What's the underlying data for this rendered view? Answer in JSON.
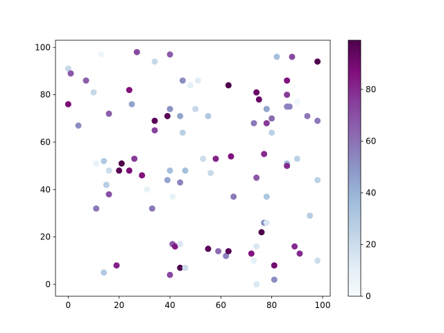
{
  "chart_data": {
    "type": "scatter",
    "title": "",
    "xlabel": "",
    "ylabel": "",
    "xlim": [
      -5,
      103
    ],
    "ylim": [
      -5,
      103
    ],
    "x_ticks": [
      0,
      20,
      40,
      60,
      80,
      100
    ],
    "y_ticks": [
      0,
      20,
      40,
      60,
      80,
      100
    ],
    "grid": false,
    "colormap": "BuPu",
    "colorbar": {
      "min": 0,
      "max": 99,
      "ticks": [
        0,
        20,
        40,
        60,
        80
      ]
    },
    "points": [
      {
        "x": 0,
        "y": 91,
        "c": 22
      },
      {
        "x": 1,
        "y": 89,
        "c": 68
      },
      {
        "x": 0,
        "y": 76,
        "c": 88
      },
      {
        "x": 4,
        "y": 67,
        "c": 52
      },
      {
        "x": 7,
        "y": 86,
        "c": 66
      },
      {
        "x": 10,
        "y": 81,
        "c": 22
      },
      {
        "x": 13,
        "y": 97,
        "c": 5
      },
      {
        "x": 11,
        "y": 51,
        "c": 8
      },
      {
        "x": 14,
        "y": 52,
        "c": 30
      },
      {
        "x": 15,
        "y": 42,
        "c": 28
      },
      {
        "x": 16,
        "y": 48,
        "c": 20
      },
      {
        "x": 16,
        "y": 72,
        "c": 66
      },
      {
        "x": 11,
        "y": 32,
        "c": 58
      },
      {
        "x": 16,
        "y": 38,
        "c": 70
      },
      {
        "x": 14,
        "y": 5,
        "c": 30
      },
      {
        "x": 19,
        "y": 8,
        "c": 82
      },
      {
        "x": 20,
        "y": 48,
        "c": 96
      },
      {
        "x": 21,
        "y": 51,
        "c": 99
      },
      {
        "x": 24,
        "y": 48,
        "c": 88
      },
      {
        "x": 24,
        "y": 82,
        "c": 86
      },
      {
        "x": 25,
        "y": 76,
        "c": 45
      },
      {
        "x": 26,
        "y": 53,
        "c": 76
      },
      {
        "x": 27,
        "y": 98,
        "c": 72
      },
      {
        "x": 29,
        "y": 46,
        "c": 86
      },
      {
        "x": 31,
        "y": 40,
        "c": 8
      },
      {
        "x": 33,
        "y": 32,
        "c": 58
      },
      {
        "x": 34,
        "y": 94,
        "c": 22
      },
      {
        "x": 34,
        "y": 69,
        "c": 96
      },
      {
        "x": 34,
        "y": 65,
        "c": 74
      },
      {
        "x": 39,
        "y": 71,
        "c": 96
      },
      {
        "x": 39,
        "y": 44,
        "c": 45
      },
      {
        "x": 40,
        "y": 48,
        "c": 35
      },
      {
        "x": 40,
        "y": 74,
        "c": 50
      },
      {
        "x": 40,
        "y": 97,
        "c": 66
      },
      {
        "x": 40,
        "y": 4,
        "c": 72
      },
      {
        "x": 41,
        "y": 37,
        "c": 8
      },
      {
        "x": 41,
        "y": 17,
        "c": 66
      },
      {
        "x": 42,
        "y": 16,
        "c": 84
      },
      {
        "x": 44,
        "y": 17,
        "c": 15
      },
      {
        "x": 44,
        "y": 71,
        "c": 45
      },
      {
        "x": 44,
        "y": 43,
        "c": 55
      },
      {
        "x": 44,
        "y": 7,
        "c": 99
      },
      {
        "x": 45,
        "y": 86,
        "c": 52
      },
      {
        "x": 45,
        "y": 64,
        "c": 26
      },
      {
        "x": 46,
        "y": 48,
        "c": 35
      },
      {
        "x": 46,
        "y": 7,
        "c": 20
      },
      {
        "x": 48,
        "y": 84,
        "c": 10
      },
      {
        "x": 50,
        "y": 74,
        "c": 22
      },
      {
        "x": 51,
        "y": 86,
        "c": 12
      },
      {
        "x": 53,
        "y": 53,
        "c": 20
      },
      {
        "x": 55,
        "y": 71,
        "c": 30
      },
      {
        "x": 55,
        "y": 15,
        "c": 96
      },
      {
        "x": 56,
        "y": 47,
        "c": 22
      },
      {
        "x": 58,
        "y": 53,
        "c": 82
      },
      {
        "x": 59,
        "y": 14,
        "c": 62
      },
      {
        "x": 62,
        "y": 12,
        "c": 55
      },
      {
        "x": 63,
        "y": 14,
        "c": 96
      },
      {
        "x": 63,
        "y": 84,
        "c": 99
      },
      {
        "x": 64,
        "y": 54,
        "c": 86
      },
      {
        "x": 65,
        "y": 37,
        "c": 58
      },
      {
        "x": 72,
        "y": 13,
        "c": 86
      },
      {
        "x": 73,
        "y": 10,
        "c": 10
      },
      {
        "x": 73,
        "y": 68,
        "c": 58
      },
      {
        "x": 74,
        "y": 81,
        "c": 92
      },
      {
        "x": 74,
        "y": 45,
        "c": 68
      },
      {
        "x": 74,
        "y": 16,
        "c": 15
      },
      {
        "x": 74,
        "y": 0,
        "c": 15
      },
      {
        "x": 75,
        "y": 78,
        "c": 92
      },
      {
        "x": 76,
        "y": 22,
        "c": 99
      },
      {
        "x": 77,
        "y": 55,
        "c": 80
      },
      {
        "x": 77,
        "y": 26,
        "c": 52
      },
      {
        "x": 78,
        "y": 74,
        "c": 45
      },
      {
        "x": 78,
        "y": 68,
        "c": 76
      },
      {
        "x": 78,
        "y": 37,
        "c": 32
      },
      {
        "x": 78,
        "y": 26,
        "c": 15
      },
      {
        "x": 80,
        "y": 64,
        "c": 26
      },
      {
        "x": 80,
        "y": 70,
        "c": 62
      },
      {
        "x": 81,
        "y": 8,
        "c": 90
      },
      {
        "x": 81,
        "y": 2,
        "c": 52
      },
      {
        "x": 82,
        "y": 96,
        "c": 35
      },
      {
        "x": 86,
        "y": 86,
        "c": 86
      },
      {
        "x": 86,
        "y": 80,
        "c": 76
      },
      {
        "x": 86,
        "y": 75,
        "c": 55
      },
      {
        "x": 86,
        "y": 51,
        "c": 35
      },
      {
        "x": 86,
        "y": 50,
        "c": 80
      },
      {
        "x": 87,
        "y": 75,
        "c": 55
      },
      {
        "x": 88,
        "y": 96,
        "c": 72
      },
      {
        "x": 89,
        "y": 16,
        "c": 80
      },
      {
        "x": 90,
        "y": 77,
        "c": 5
      },
      {
        "x": 90,
        "y": 53,
        "c": 26
      },
      {
        "x": 91,
        "y": 13,
        "c": 80
      },
      {
        "x": 94,
        "y": 71,
        "c": 58
      },
      {
        "x": 95,
        "y": 29,
        "c": 28
      },
      {
        "x": 98,
        "y": 94,
        "c": 99
      },
      {
        "x": 98,
        "y": 69,
        "c": 58
      },
      {
        "x": 98,
        "y": 44,
        "c": 26
      },
      {
        "x": 98,
        "y": 10,
        "c": 20
      }
    ]
  }
}
